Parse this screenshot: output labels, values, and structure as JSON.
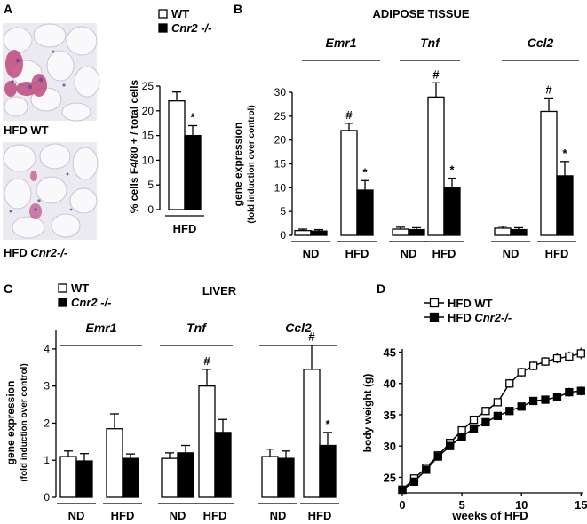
{
  "panels": {
    "A": {
      "letter": "A",
      "image_labels": [
        "HFD WT",
        "HFD Cnr2-/-"
      ],
      "legend": [
        {
          "name": "WT",
          "fill": "#ffffff"
        },
        {
          "name": "Cnr2 -/-",
          "fill": "#000000"
        }
      ],
      "ylabel": "% cells F4/80 + / total cells",
      "xlabel": "HFD"
    },
    "B": {
      "letter": "B",
      "title": "ADIPOSE TISSUE",
      "ylabel": "gene expression",
      "ylabel2": "(fold induction over control)"
    },
    "C": {
      "letter": "C",
      "title": "LIVER",
      "ylabel": "gene expression",
      "ylabel2": "(fold induction over control)",
      "legend": [
        {
          "name": "WT",
          "fill": "#ffffff"
        },
        {
          "name": "Cnr2 -/-",
          "fill": "#000000"
        }
      ]
    },
    "D": {
      "letter": "D",
      "legend": [
        {
          "name": "HFD WT",
          "fill": "#ffffff"
        },
        {
          "name": "HFD Cnr2-/-",
          "fill": "#000000"
        }
      ],
      "ylabel": "body weight (g)",
      "xlabel": "weeks of HFD"
    }
  },
  "chart_data": [
    {
      "id": "A",
      "type": "bar",
      "categories": [
        "HFD"
      ],
      "series": [
        {
          "name": "WT",
          "values": [
            22
          ],
          "errors": [
            1.8
          ]
        },
        {
          "name": "Cnr2 -/-",
          "values": [
            15
          ],
          "errors": [
            2.0
          ]
        }
      ],
      "ylim": [
        0,
        25
      ],
      "yticks": [
        0,
        5,
        10,
        15,
        20,
        25
      ],
      "annotations": [
        {
          "text": "*",
          "series": 1,
          "index": 0
        }
      ]
    },
    {
      "id": "B",
      "type": "bar",
      "groups": [
        "Emr1",
        "Tnf",
        "Ccl2"
      ],
      "categories": [
        "ND",
        "HFD",
        "ND",
        "HFD",
        "ND",
        "HFD"
      ],
      "series": [
        {
          "name": "WT",
          "values": [
            1.0,
            22.0,
            1.3,
            29.0,
            1.5,
            26.0
          ],
          "errors": [
            0.3,
            1.5,
            0.4,
            3.0,
            0.4,
            2.8
          ]
        },
        {
          "name": "Cnr2 -/-",
          "values": [
            0.9,
            9.5,
            1.2,
            10.0,
            1.2,
            12.5
          ],
          "errors": [
            0.3,
            2.0,
            0.4,
            2.0,
            0.4,
            3.0
          ]
        }
      ],
      "ylim": [
        0,
        30
      ],
      "yticks": [
        0,
        5,
        10,
        15,
        20,
        25,
        30
      ],
      "annotations": [
        {
          "text": "#",
          "series": 0,
          "index": 1
        },
        {
          "text": "*",
          "series": 1,
          "index": 1
        },
        {
          "text": "#",
          "series": 0,
          "index": 3
        },
        {
          "text": "*",
          "series": 1,
          "index": 3
        },
        {
          "text": "#",
          "series": 0,
          "index": 5
        },
        {
          "text": "*",
          "series": 1,
          "index": 5
        }
      ]
    },
    {
      "id": "C",
      "type": "bar",
      "groups": [
        "Emr1",
        "Tnf",
        "Ccl2"
      ],
      "categories": [
        "ND",
        "HFD",
        "ND",
        "HFD",
        "ND",
        "HFD"
      ],
      "series": [
        {
          "name": "WT",
          "values": [
            1.1,
            1.85,
            1.05,
            3.0,
            1.1,
            3.45
          ],
          "errors": [
            0.15,
            0.4,
            0.15,
            0.45,
            0.2,
            0.65
          ]
        },
        {
          "name": "Cnr2 -/-",
          "values": [
            0.98,
            1.05,
            1.2,
            1.75,
            1.05,
            1.4
          ],
          "errors": [
            0.2,
            0.12,
            0.2,
            0.35,
            0.2,
            0.35
          ]
        }
      ],
      "ylim": [
        0,
        4.5
      ],
      "yticks": [
        0,
        1,
        2,
        3,
        4
      ],
      "annotations": [
        {
          "text": "#",
          "series": 0,
          "index": 3
        },
        {
          "text": "#",
          "series": 0,
          "index": 5
        },
        {
          "text": "*",
          "series": 1,
          "index": 5
        }
      ]
    },
    {
      "id": "D",
      "type": "line",
      "x": [
        0,
        1,
        2,
        3,
        4,
        5,
        6,
        7,
        8,
        9,
        10,
        11,
        12,
        13,
        14,
        15
      ],
      "series": [
        {
          "name": "HFD WT",
          "marker": "open-square",
          "y": [
            23.0,
            24.8,
            26.5,
            28.5,
            30.5,
            32.5,
            34.2,
            35.6,
            37.0,
            40.0,
            41.8,
            42.8,
            43.5,
            44.0,
            44.3,
            44.8
          ],
          "errors": [
            0.5,
            0.5,
            0.5,
            0.5,
            0.5,
            0.5,
            0.5,
            0.5,
            0.6,
            0.7,
            0.7,
            0.7,
            0.7,
            0.8,
            0.8,
            0.9
          ]
        },
        {
          "name": "HFD Cnr2-/-",
          "marker": "filled-square",
          "y": [
            23.0,
            24.3,
            26.2,
            28.3,
            30.0,
            31.5,
            32.8,
            33.8,
            34.8,
            35.6,
            36.3,
            37.2,
            37.4,
            37.8,
            38.6,
            38.8
          ],
          "errors": [
            0.5,
            0.5,
            0.5,
            0.5,
            0.5,
            0.5,
            0.5,
            0.5,
            0.5,
            0.5,
            0.6,
            0.6,
            0.6,
            0.6,
            0.7,
            0.7
          ]
        }
      ],
      "xlim": [
        0,
        15.5
      ],
      "ylim": [
        22.5,
        45.5
      ],
      "xticks": [
        0,
        5,
        10,
        15
      ],
      "yticks": [
        25,
        30,
        35,
        40,
        45
      ]
    }
  ]
}
